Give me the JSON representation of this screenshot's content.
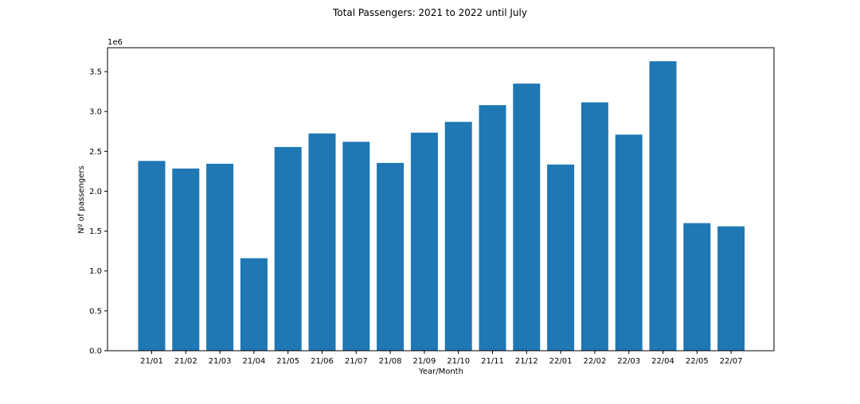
{
  "chart_data": {
    "type": "bar",
    "title": "Total Passengers: 2021 to 2022 until July",
    "xlabel": "Year/Month",
    "ylabel": "Nº of passengers",
    "y_offset_label": "1e6",
    "ylim": [
      0,
      3800000
    ],
    "yticks": [
      0,
      500000,
      1000000,
      1500000,
      2000000,
      2500000,
      3000000,
      3500000
    ],
    "ytick_labels": [
      "0.0",
      "0.5",
      "1.0",
      "1.5",
      "2.0",
      "2.5",
      "3.0",
      "3.5"
    ],
    "categories": [
      "21/01",
      "21/02",
      "21/03",
      "21/04",
      "21/05",
      "21/06",
      "21/07",
      "21/08",
      "21/09",
      "21/10",
      "21/11",
      "21/12",
      "22/01",
      "22/02",
      "22/03",
      "22/04",
      "22/05",
      "22/07"
    ],
    "values": [
      2380000,
      2285000,
      2345000,
      1160000,
      2555000,
      2725000,
      2620000,
      2355000,
      2735000,
      2870000,
      3080000,
      3350000,
      2335000,
      3115000,
      2710000,
      3630000,
      1600000,
      1560000
    ],
    "color": "#1f77b4",
    "grid": false,
    "legend": "none"
  }
}
